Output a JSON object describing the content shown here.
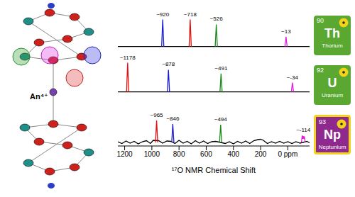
{
  "chart_data": [
    {
      "type": "line",
      "xlim": [
        1250,
        -160
      ],
      "ylim": [
        -0.1,
        1.1
      ],
      "tick_labels": false,
      "series": [
        {
          "color": "#000000",
          "x": [
            1250,
            -160
          ],
          "values": [
            0,
            0
          ]
        },
        {
          "color": "#1c1cd0",
          "x": [
            928,
            920,
            912
          ],
          "values": [
            0,
            0.88,
            0
          ]
        },
        {
          "color": "#e01010",
          "x": [
            726,
            718,
            710
          ],
          "values": [
            0,
            0.88,
            0
          ]
        },
        {
          "color": "#1a8a1a",
          "x": [
            534,
            526,
            518
          ],
          "values": [
            0,
            0.72,
            0
          ]
        },
        {
          "color": "#e020e0",
          "x": [
            21,
            13,
            5
          ],
          "values": [
            0,
            0.32,
            0
          ]
        }
      ],
      "annotations": [
        {
          "x": 920,
          "y": 0.88,
          "text": "~920",
          "color": "#000000"
        },
        {
          "x": 718,
          "y": 0.88,
          "text": "~718",
          "color": "#000000"
        },
        {
          "x": 526,
          "y": 0.72,
          "text": "~526",
          "color": "#000000"
        },
        {
          "x": 13,
          "y": 0.32,
          "text": "~13",
          "color": "#000000"
        }
      ]
    },
    {
      "type": "line",
      "xlim": [
        1250,
        -160
      ],
      "ylim": [
        -0.1,
        1.1
      ],
      "tick_labels": false,
      "series": [
        {
          "color": "#000000",
          "x": [
            1250,
            -160
          ],
          "values": [
            0,
            0
          ]
        },
        {
          "color": "#e01010",
          "x": [
            1186,
            1178,
            1170
          ],
          "values": [
            0,
            0.95,
            0
          ]
        },
        {
          "color": "#1c1cd0",
          "x": [
            886,
            878,
            870
          ],
          "values": [
            0,
            0.72,
            0
          ]
        },
        {
          "color": "#1a8a1a",
          "x": [
            499,
            491,
            483
          ],
          "values": [
            0,
            0.6,
            0
          ]
        },
        {
          "color": "#e020e0",
          "x": [
            -26,
            -34,
            -42
          ],
          "values": [
            0,
            0.3,
            0
          ]
        }
      ],
      "annotations": [
        {
          "x": 1178,
          "y": 0.95,
          "text": "~1178",
          "color": "#000000"
        },
        {
          "x": 878,
          "y": 0.72,
          "text": "~878",
          "color": "#000000"
        },
        {
          "x": 491,
          "y": 0.6,
          "text": "~491",
          "color": "#000000"
        },
        {
          "x": -34,
          "y": 0.3,
          "text": "~-34",
          "color": "#000000"
        }
      ]
    },
    {
      "type": "line",
      "xlim": [
        1250,
        -160
      ],
      "ylim": [
        -0.1,
        1.1
      ],
      "tick_labels": "x",
      "xticks": [
        1200,
        1000,
        800,
        600,
        400,
        200,
        {
          "value": 0,
          "label": "0 ppm"
        }
      ],
      "xlabel": "¹⁷O NMR Chemical Shift",
      "series": [
        {
          "color": "#000000",
          "x": [
            1250,
            1220,
            1190,
            1160,
            1130,
            1100,
            1070,
            1040,
            1010,
            990,
            950,
            920,
            890,
            860,
            830,
            800,
            770,
            740,
            710,
            680,
            650,
            620,
            590,
            560,
            530,
            460,
            430,
            400,
            370,
            340,
            310,
            280,
            250,
            220,
            200,
            180,
            150,
            120,
            90,
            60,
            30,
            0,
            -30,
            -60,
            -90,
            -140,
            -160
          ],
          "values": [
            0.02,
            -0.03,
            0.04,
            -0.02,
            0.03,
            -0.04,
            0.02,
            0.05,
            -0.03,
            0.06,
            0.05,
            -0.02,
            0.04,
            0.03,
            -0.03,
            0.06,
            -0.02,
            0.03,
            -0.04,
            0.05,
            -0.02,
            0.04,
            -0.03,
            0.02,
            0.03,
            -0.03,
            0.02,
            -0.04,
            0.03,
            -0.02,
            0.04,
            -0.03,
            0.05,
            0.08,
            0.09,
            0.06,
            -0.03,
            0.02,
            -0.02,
            0.03,
            -0.02,
            0.02,
            -0.03,
            0.02,
            -0.02,
            0.03,
            -0.01
          ]
        },
        {
          "color": "#e01010",
          "x": [
            973,
            965,
            957
          ],
          "values": [
            0,
            0.62,
            0
          ]
        },
        {
          "color": "#1c1cd0",
          "x": [
            854,
            846,
            838
          ],
          "values": [
            0,
            0.52,
            0
          ]
        },
        {
          "color": "#1a8a1a",
          "x": [
            502,
            494,
            486
          ],
          "values": [
            0,
            0.5,
            0
          ]
        },
        {
          "color": "#e020e0",
          "x": [
            -100,
            -106,
            -110,
            -114,
            -118,
            -122,
            -128
          ],
          "values": [
            0,
            0.2,
            0.1,
            0.18,
            0.1,
            0.17,
            0
          ]
        }
      ],
      "annotations": [
        {
          "x": 965,
          "y": 0.62,
          "text": "~965",
          "color": "#000000"
        },
        {
          "x": 846,
          "y": 0.52,
          "text": "~846",
          "color": "#000000"
        },
        {
          "x": 494,
          "y": 0.5,
          "text": "~494",
          "color": "#000000"
        },
        {
          "x": -114,
          "y": 0.2,
          "text": "~-114",
          "color": "#000000"
        }
      ]
    }
  ],
  "molecule": {
    "label": "An⁴⁺"
  },
  "elements": [
    {
      "number": 90,
      "symbol": "Th",
      "name": "Thorium",
      "color": "#5aa832"
    },
    {
      "number": 92,
      "symbol": "U",
      "name": "Uranium",
      "color": "#5aa832"
    },
    {
      "number": 93,
      "symbol": "Np",
      "name": "Neptunium",
      "color": "#8e2a8e",
      "border": "#f2d21b"
    }
  ]
}
